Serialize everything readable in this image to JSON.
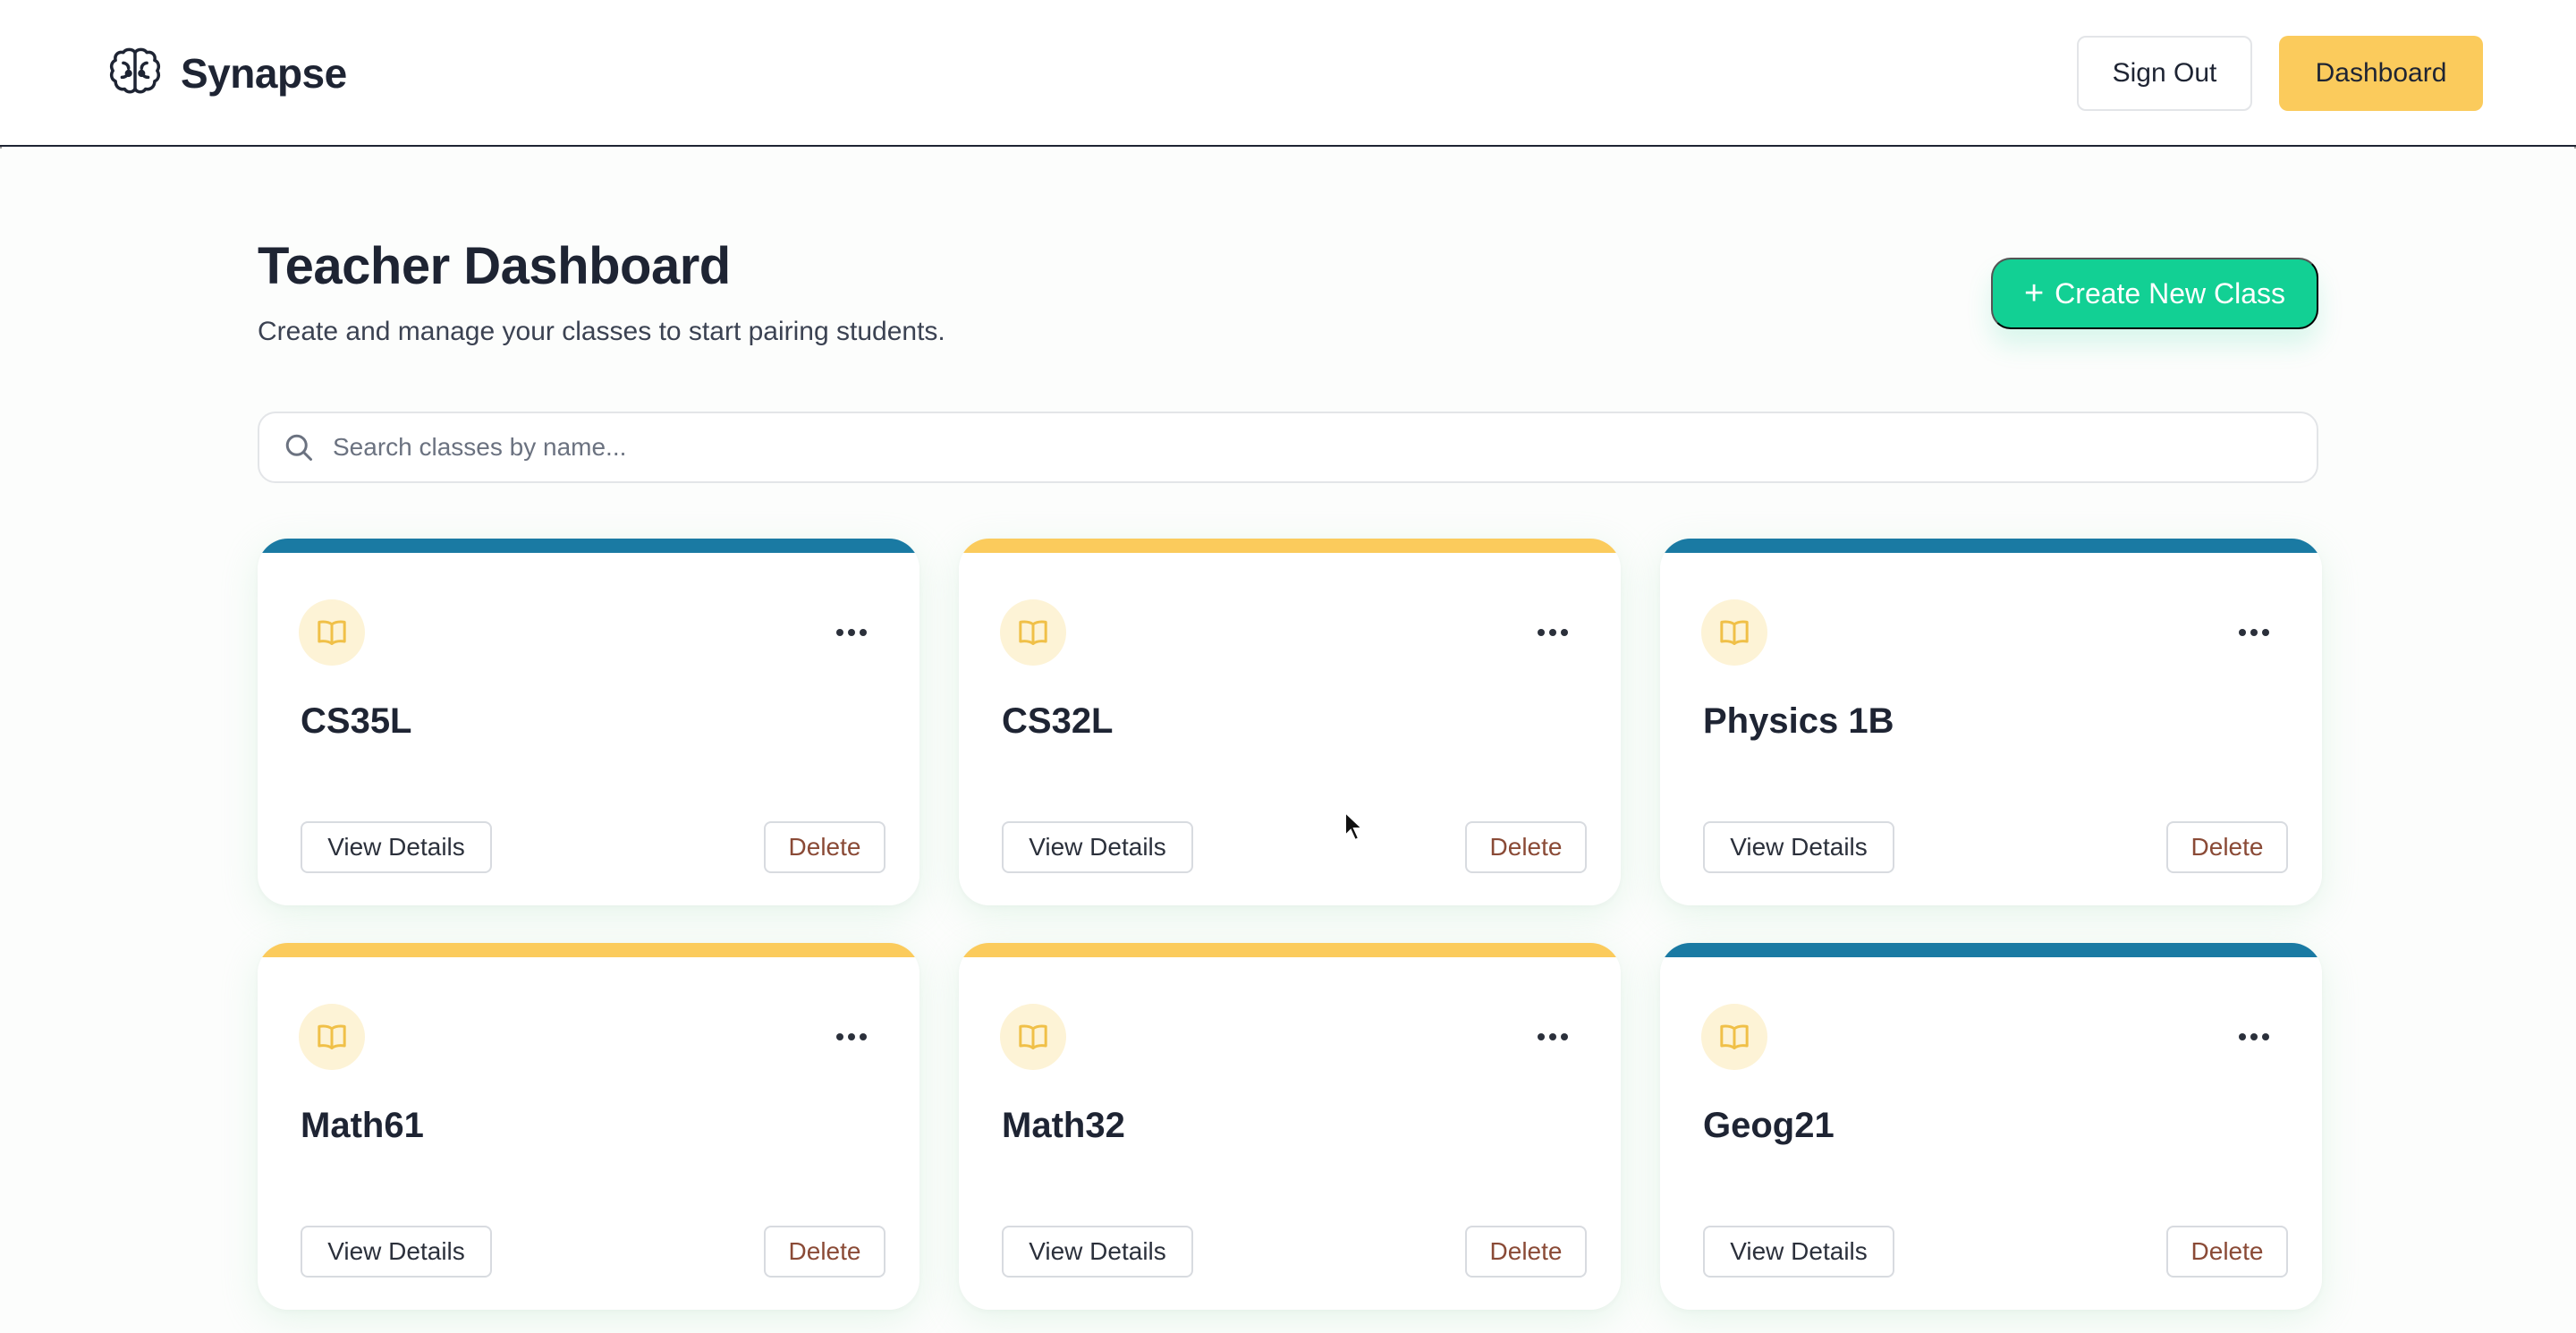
{
  "header": {
    "brand_name": "Synapse",
    "brand_icon": "brain-icon",
    "sign_out_label": "Sign Out",
    "dashboard_label": "Dashboard"
  },
  "main": {
    "title": "Teacher Dashboard",
    "subtitle": "Create and manage your classes to start pairing students.",
    "create_button": {
      "icon": "+",
      "label": "Create New Class"
    },
    "search": {
      "placeholder": "Search classes by name...",
      "value": ""
    }
  },
  "classes": [
    {
      "name": "CS35L",
      "accent": "#1a7aa3",
      "view_label": "View Details",
      "delete_label": "Delete"
    },
    {
      "name": "CS32L",
      "accent": "#fbcb5c",
      "view_label": "View Details",
      "delete_label": "Delete"
    },
    {
      "name": "Physics 1B",
      "accent": "#1a7aa3",
      "view_label": "View Details",
      "delete_label": "Delete"
    },
    {
      "name": "Math61",
      "accent": "#fbcb5c",
      "view_label": "View Details",
      "delete_label": "Delete"
    },
    {
      "name": "Math32",
      "accent": "#fbcb5c",
      "view_label": "View Details",
      "delete_label": "Delete"
    },
    {
      "name": "Geog21",
      "accent": "#1a7aa3",
      "view_label": "View Details",
      "delete_label": "Delete"
    }
  ],
  "colors": {
    "primary_accent": "#12d094",
    "dashboard_button": "#fbcb5c",
    "stripe_blue": "#1a7aa3",
    "stripe_yellow": "#fbcb5c",
    "delete_text": "#8a4a36"
  }
}
